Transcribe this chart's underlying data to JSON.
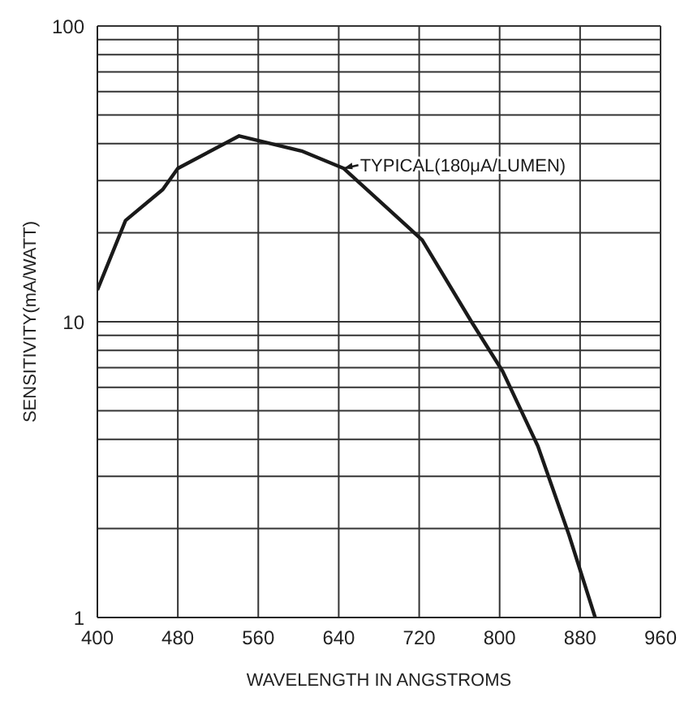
{
  "chart_data": {
    "type": "line",
    "xlabel": "WAVELENGTH IN ANGSTROMS",
    "ylabel": "SENSITIVITY(mA/WATT)",
    "series": [
      {
        "color": "#1a1a1a",
        "x": [
          400,
          428,
          465,
          480,
          541,
          603,
          645,
          723,
          772,
          803,
          838,
          869,
          895
        ],
        "values": [
          12.8,
          22,
          28,
          33,
          42.5,
          37.8,
          33,
          18.9,
          10,
          6.8,
          3.8,
          1.9,
          1
        ]
      }
    ],
    "xlim": [
      400,
      960
    ],
    "xticks": [
      400,
      480,
      560,
      640,
      720,
      800,
      880,
      960
    ],
    "ylim": [
      1,
      100
    ],
    "log": true,
    "yticks": [
      1,
      {
        "value": 2,
        "label": null
      },
      {
        "value": 3,
        "label": null
      },
      {
        "value": 4,
        "label": null
      },
      {
        "value": 5,
        "label": null
      },
      {
        "value": 6,
        "label": null
      },
      {
        "value": 7,
        "label": null
      },
      {
        "value": 8,
        "label": null
      },
      {
        "value": 9,
        "label": null
      },
      10,
      {
        "value": 20,
        "label": null
      },
      {
        "value": 30,
        "label": null
      },
      {
        "value": 40,
        "label": null
      },
      {
        "value": 50,
        "label": null
      },
      {
        "value": 60,
        "label": null
      },
      {
        "value": 70,
        "label": null
      },
      {
        "value": 80,
        "label": null
      },
      {
        "value": 90,
        "label": null
      },
      100
    ],
    "grid": true,
    "marker": "none",
    "line_style": "solid",
    "annotations": [
      {
        "text": "TYPICAL(180μA/LUMEN)",
        "x": 645,
        "y": 33
      }
    ]
  }
}
